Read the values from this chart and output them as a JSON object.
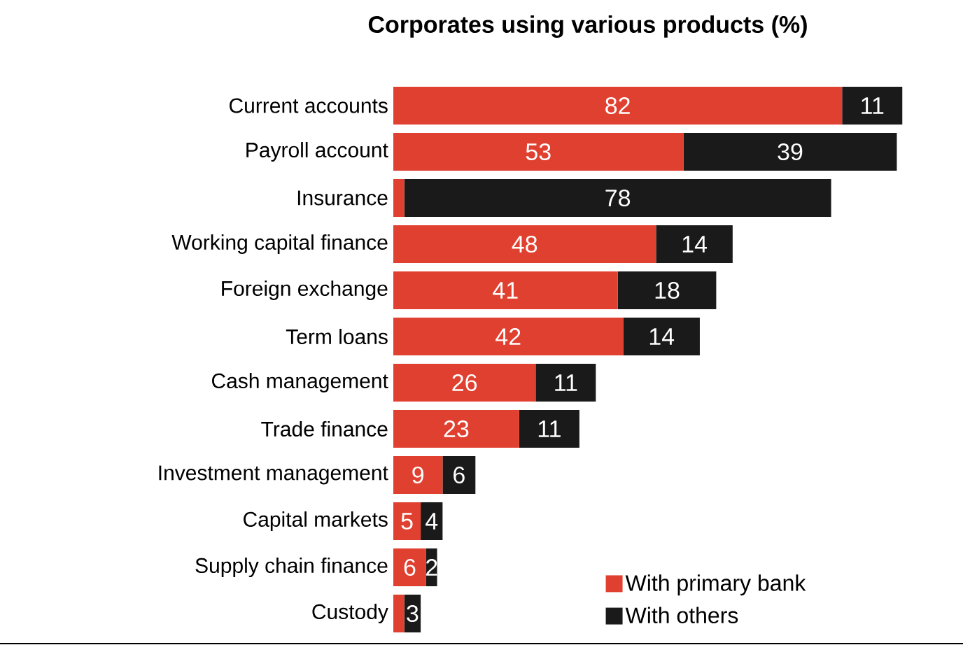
{
  "chart_data": {
    "type": "bar",
    "orientation": "horizontal",
    "stacked": true,
    "title": "Corporates using various products (%)",
    "categories": [
      "Current accounts",
      "Payroll account",
      "Insurance",
      "Working capital finance",
      "Foreign exchange",
      "Term loans",
      "Cash management",
      "Trade finance",
      "Investment management",
      "Capital markets",
      "Supply chain finance",
      "Custody"
    ],
    "series": [
      {
        "name": "With primary bank",
        "color": "#e04030",
        "values": [
          82,
          53,
          2,
          48,
          41,
          42,
          26,
          23,
          9,
          5,
          6,
          2
        ],
        "value_labels": [
          "82",
          "53",
          null,
          "48",
          "41",
          "42",
          "26",
          "23",
          "9",
          "5",
          "6",
          null
        ]
      },
      {
        "name": "With others",
        "color": "#1a1a1a",
        "values": [
          11,
          39,
          78,
          14,
          18,
          14,
          11,
          11,
          6,
          4,
          2,
          3
        ],
        "value_labels": [
          "11",
          "39",
          "78",
          "14",
          "18",
          "14",
          "11",
          "11",
          "6",
          "4",
          "2",
          "3"
        ]
      }
    ],
    "legend": "bottom right"
  }
}
